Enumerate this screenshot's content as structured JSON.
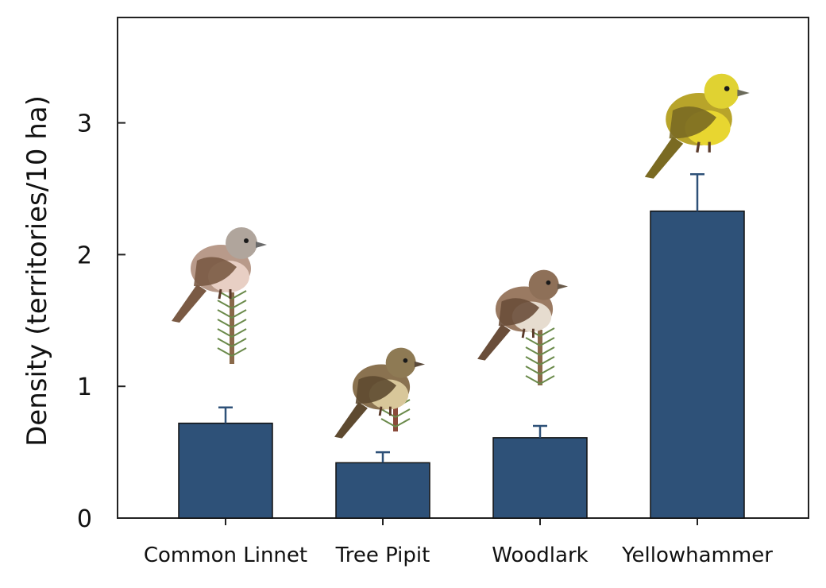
{
  "chart_data": {
    "type": "bar",
    "title": "",
    "xlabel": "",
    "ylabel": "Density (territories/10 ha)",
    "categories": [
      "Common Linnet",
      "Tree Pipit",
      "Woodlark",
      "Yellowhammer"
    ],
    "values": [
      0.72,
      0.42,
      0.61,
      2.33
    ],
    "errors": [
      0.12,
      0.08,
      0.09,
      0.28
    ],
    "ylim": [
      0,
      3.8
    ],
    "yticks": [
      0,
      1,
      2,
      3
    ],
    "grid": false,
    "legend": "none",
    "bar_color": "#2e5178",
    "error_color": "#2e5178",
    "bird_icons": [
      "linnet-icon",
      "tree-pipit-icon",
      "woodlark-icon",
      "yellowhammer-icon"
    ]
  }
}
